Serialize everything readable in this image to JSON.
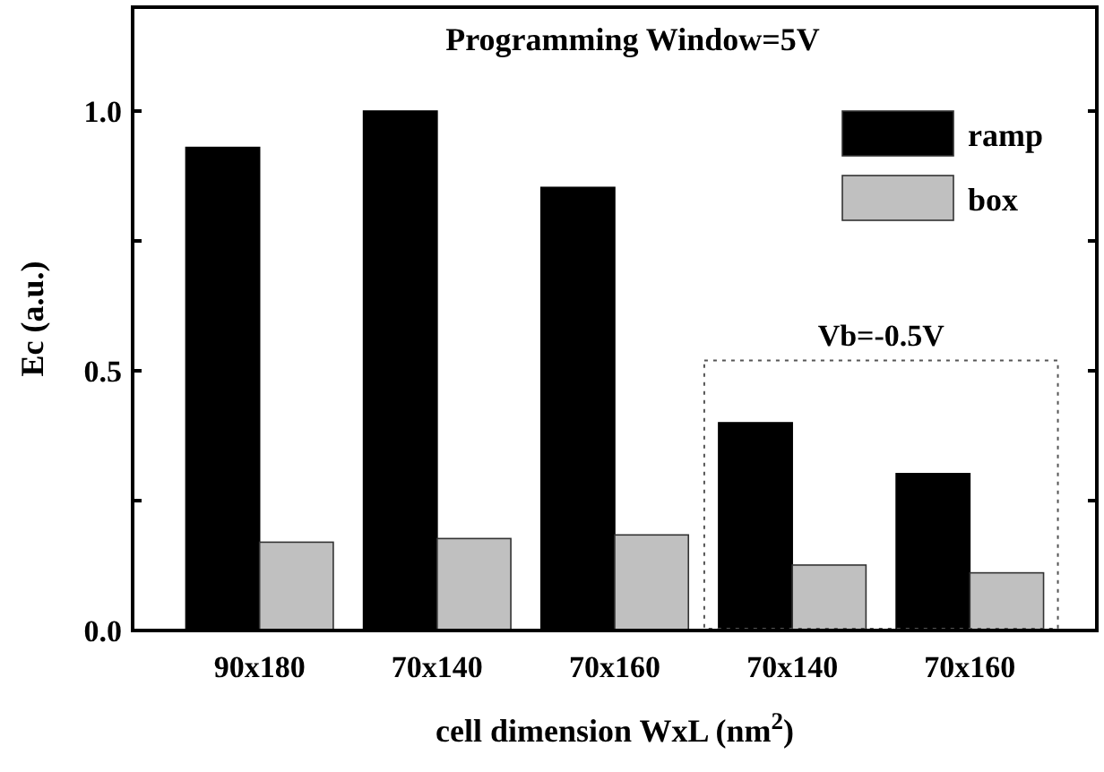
{
  "chart_data": {
    "type": "bar",
    "title": "Programming Window=5V",
    "xlabel": "cell dimension WxL (nm$^{2}$)",
    "ylabel": "Ec (a.u.)",
    "categories": [
      "90x180",
      "70x140",
      "70x160",
      "70x140",
      "70x160"
    ],
    "series": [
      {
        "name": "ramp",
        "color": "#000000",
        "values": [
          0.93,
          1.0,
          0.853,
          0.4,
          0.302
        ]
      },
      {
        "name": "box",
        "color": "#c0c0c0",
        "values": [
          0.17,
          0.177,
          0.184,
          0.126,
          0.111
        ]
      }
    ],
    "ylim": [
      0,
      1.2
    ],
    "yticks": [
      {
        "value": 0,
        "label": "0.0"
      },
      {
        "value": 0.25,
        "label": null
      },
      {
        "value": 0.5,
        "label": "0.5"
      },
      {
        "value": 0.75,
        "label": null
      },
      {
        "value": 1,
        "label": "1.0"
      }
    ],
    "legend": "top right",
    "annotations": [
      "Vb=-0.5V"
    ]
  }
}
